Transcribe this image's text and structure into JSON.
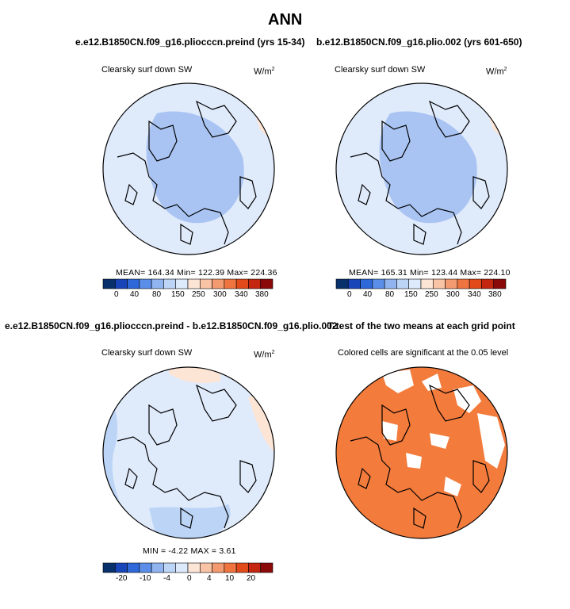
{
  "page_title": "ANN",
  "panels": [
    {
      "title": "e.e12.B1850CN.f09_g16.pliocccn.preind (yrs 15-34)",
      "left_label": "Clearsky surf down SW",
      "units": "W/m",
      "units_sup": "2",
      "stats": "MEAN= 164.34  Min= 122.39  Max= 224.36"
    },
    {
      "title": "b.e12.B1850CN.f09_g16.plio.002 (yrs 601-650)",
      "left_label": "Clearsky surf down SW",
      "units": "W/m",
      "units_sup": "2",
      "stats": "MEAN= 165.31  Min= 123.44  Max= 224.10"
    },
    {
      "title": "e.e12.B1850CN.f09_g16.pliocccn.preind - b.e12.B1850CN.f09_g16.plio.002",
      "left_label": "Clearsky surf down SW",
      "units": "W/m",
      "units_sup": "2",
      "stats": "MIN =  -4.22  MAX =   3.61"
    },
    {
      "title": "T-test of the two means at each grid point",
      "left_label": "Colored cells are significant at the 0.05 level"
    }
  ],
  "colors": {
    "abs_scale": [
      "#08306b",
      "#1846b8",
      "#2f68d9",
      "#5a8ee8",
      "#8fb4f0",
      "#bcd4f6",
      "#ddeafc",
      "#fde5d6",
      "#f9c4a6",
      "#f49a70",
      "#ef7440",
      "#e24a1a",
      "#c42610",
      "#8a0a0a"
    ],
    "diff_scale": [
      "#08306b",
      "#1846b8",
      "#2f68d9",
      "#5a8ee8",
      "#8fb4f0",
      "#bcd4f6",
      "#ddeafc",
      "#fde5d6",
      "#f9c4a6",
      "#f49a70",
      "#ef7440",
      "#e24a1a",
      "#c42610",
      "#8a0a0a"
    ],
    "ttest_fill": "#f37b3c"
  },
  "chart_data": [
    {
      "type": "heatmap",
      "title": "e.e12.B1850CN.f09_g16.pliocccn.preind (yrs 15-34)",
      "variable": "Clearsky surf down SW",
      "units": "W/m2",
      "mean": 164.34,
      "min": 122.39,
      "max": 224.36,
      "colorbar_ticks": [
        "0",
        "40",
        "80",
        "150",
        "250",
        "300",
        "340",
        "380"
      ]
    },
    {
      "type": "heatmap",
      "title": "b.e12.B1850CN.f09_g16.plio.002 (yrs 601-650)",
      "variable": "Clearsky surf down SW",
      "units": "W/m2",
      "mean": 165.31,
      "min": 123.44,
      "max": 224.1,
      "colorbar_ticks": [
        "0",
        "40",
        "80",
        "150",
        "250",
        "300",
        "340",
        "380"
      ]
    },
    {
      "type": "heatmap",
      "title": "e.e12.B1850CN.f09_g16.pliocccn.preind - b.e12.B1850CN.f09_g16.plio.002",
      "variable": "Clearsky surf down SW",
      "units": "W/m2",
      "min": -4.22,
      "max": 3.61,
      "colorbar_ticks": [
        "-20",
        "-10",
        "-4",
        "0",
        "4",
        "10",
        "20"
      ]
    },
    {
      "type": "heatmap",
      "title": "T-test of the two means at each grid point",
      "note": "Colored cells are significant at the 0.05 level"
    }
  ]
}
